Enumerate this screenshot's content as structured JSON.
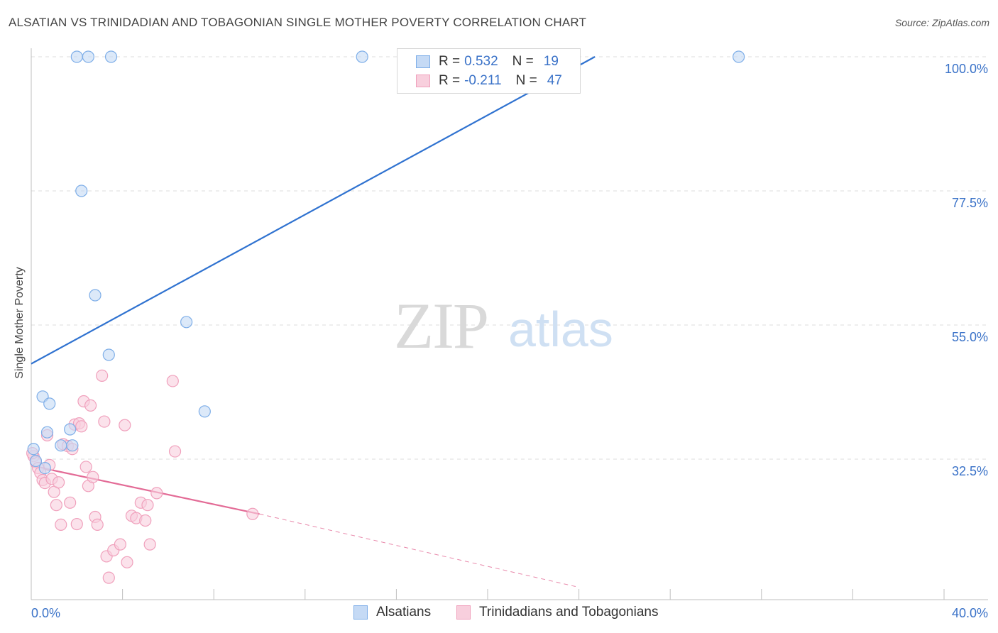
{
  "chart_data": {
    "type": "scatter",
    "title": "ALSATIAN VS TRINIDADIAN AND TOBAGONIAN SINGLE MOTHER POVERTY CORRELATION CHART",
    "source": "Source: ZipAtlas.com",
    "xlabel": "",
    "ylabel": "Single Mother Poverty",
    "xlim": [
      0,
      40
    ],
    "ylim": [
      10,
      102
    ],
    "x_tick_labels": [
      "0.0%",
      "40.0%"
    ],
    "y_tick_labels": [
      "100.0%",
      "77.5%",
      "55.0%",
      "32.5%"
    ],
    "y_tick_values": [
      100,
      77.5,
      55,
      32.5
    ],
    "grid": true,
    "watermark": {
      "zip": "ZIP",
      "atlas": "atlas"
    },
    "legend": {
      "rows": [
        {
          "r_label": "R =",
          "r_value": "0.532",
          "n_label": "N =",
          "n_value": "19"
        },
        {
          "r_label": "R =",
          "r_value": "-0.211",
          "n_label": "N =",
          "n_value": "47"
        }
      ]
    },
    "series": [
      {
        "name": "Alsatians",
        "color": "#7eaee8",
        "fill": "#c5daf5",
        "line_color": "#2f72d0",
        "trend": {
          "x0": 0,
          "y0": 48.5,
          "x1": 24.7,
          "y1": 100
        },
        "points": [
          [
            2.0,
            100
          ],
          [
            2.5,
            100
          ],
          [
            3.5,
            100
          ],
          [
            14.5,
            100
          ],
          [
            31.0,
            100
          ],
          [
            2.2,
            77.5
          ],
          [
            2.8,
            60
          ],
          [
            6.8,
            55.5
          ],
          [
            3.4,
            50
          ],
          [
            7.6,
            40.5
          ],
          [
            0.5,
            43
          ],
          [
            0.8,
            41.8
          ],
          [
            1.7,
            37.5
          ],
          [
            0.7,
            37
          ],
          [
            1.3,
            34.8
          ],
          [
            1.8,
            34.8
          ],
          [
            0.1,
            34.2
          ],
          [
            0.2,
            32.2
          ],
          [
            0.6,
            31
          ]
        ]
      },
      {
        "name": "Trinidadians and Tobagonians",
        "color": "#f0a0bc",
        "fill": "#f8cfdd",
        "line_color": "#e36b96",
        "trend": {
          "x0": 0,
          "y0": 31.4,
          "x1": 10,
          "y1": 23.3,
          "dash_x1": 24,
          "dash_y1": 11.0
        },
        "points": [
          [
            0.1,
            33
          ],
          [
            0.2,
            32
          ],
          [
            0.3,
            31
          ],
          [
            0.4,
            30.2
          ],
          [
            0.5,
            29
          ],
          [
            0.6,
            28.5
          ],
          [
            0.8,
            31.5
          ],
          [
            0.9,
            29.2
          ],
          [
            0.7,
            36.5
          ],
          [
            1.0,
            27
          ],
          [
            1.1,
            24.8
          ],
          [
            1.2,
            28.6
          ],
          [
            1.3,
            21.5
          ],
          [
            1.4,
            35
          ],
          [
            1.6,
            34.7
          ],
          [
            1.7,
            25.2
          ],
          [
            1.8,
            34.2
          ],
          [
            1.9,
            38.3
          ],
          [
            2.0,
            21.6
          ],
          [
            2.1,
            38.5
          ],
          [
            2.2,
            38.0
          ],
          [
            2.3,
            42.2
          ],
          [
            2.4,
            31.2
          ],
          [
            2.5,
            28
          ],
          [
            2.6,
            41.5
          ],
          [
            2.7,
            29.5
          ],
          [
            2.8,
            22.8
          ],
          [
            2.9,
            21.5
          ],
          [
            3.1,
            46.5
          ],
          [
            3.2,
            38.8
          ],
          [
            3.3,
            16.2
          ],
          [
            3.4,
            12.6
          ],
          [
            3.6,
            17.2
          ],
          [
            3.9,
            18.2
          ],
          [
            4.1,
            38.2
          ],
          [
            4.2,
            15.2
          ],
          [
            4.4,
            23.0
          ],
          [
            4.6,
            22.6
          ],
          [
            4.8,
            25.2
          ],
          [
            5.0,
            22.2
          ],
          [
            5.1,
            24.8
          ],
          [
            5.2,
            18.2
          ],
          [
            5.5,
            26.8
          ],
          [
            6.2,
            45.6
          ],
          [
            6.3,
            33.8
          ],
          [
            9.7,
            23.3
          ],
          [
            0.05,
            33.5
          ]
        ]
      }
    ]
  }
}
